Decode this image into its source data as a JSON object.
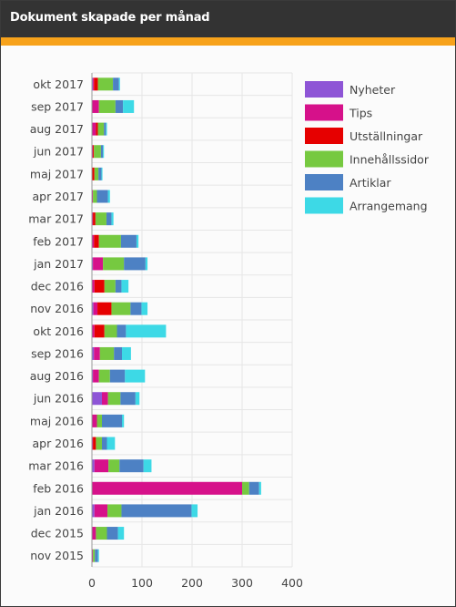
{
  "widget": {
    "title": "Dokument skapade per månad"
  },
  "chart_data": {
    "type": "bar",
    "orientation": "horizontal",
    "stacked": true,
    "title": "",
    "xlabel": "",
    "ylabel": "",
    "xlim": [
      0,
      400
    ],
    "x_ticks": [
      "0",
      "100",
      "200",
      "300",
      "400"
    ],
    "grid": true,
    "legend_position": "right",
    "categories": [
      "okt 2017",
      "sep 2017",
      "aug 2017",
      "jun 2017",
      "maj 2017",
      "apr 2017",
      "mar 2017",
      "feb 2017",
      "jan 2017",
      "dec 2016",
      "nov 2016",
      "okt 2016",
      "sep 2016",
      "aug 2016",
      "jun 2016",
      "maj 2016",
      "apr 2016",
      "mar 2016",
      "feb 2016",
      "jan 2016",
      "dec 2015",
      "nov 2015"
    ],
    "series": [
      {
        "name": "Nyheter",
        "color": "#8e55d6",
        "values": [
          2,
          0,
          0,
          0,
          0,
          0,
          0,
          0,
          2,
          0,
          3,
          0,
          4,
          2,
          20,
          0,
          0,
          5,
          0,
          5,
          0,
          0
        ]
      },
      {
        "name": "Tips",
        "color": "#d6118a",
        "values": [
          2,
          14,
          8,
          2,
          0,
          2,
          2,
          4,
          20,
          5,
          8,
          5,
          12,
          12,
          12,
          10,
          2,
          28,
          300,
          26,
          8,
          2
        ]
      },
      {
        "name": "Utställningar",
        "color": "#e60000",
        "values": [
          8,
          0,
          4,
          2,
          5,
          0,
          5,
          10,
          0,
          20,
          28,
          20,
          0,
          0,
          0,
          0,
          6,
          0,
          0,
          0,
          0,
          0
        ]
      },
      {
        "name": "Innehållssidor",
        "color": "#76c940",
        "values": [
          30,
          33,
          12,
          14,
          8,
          8,
          22,
          44,
          42,
          22,
          38,
          25,
          28,
          22,
          25,
          10,
          12,
          22,
          14,
          28,
          22,
          4
        ]
      },
      {
        "name": "Artiklar",
        "color": "#4d81c4",
        "values": [
          12,
          15,
          4,
          4,
          6,
          22,
          10,
          31,
          43,
          12,
          22,
          18,
          16,
          30,
          30,
          40,
          10,
          48,
          20,
          140,
          22,
          6
        ]
      },
      {
        "name": "Arrangemang",
        "color": "#3dd9e6",
        "values": [
          2,
          22,
          2,
          2,
          2,
          4,
          4,
          4,
          4,
          14,
          12,
          80,
          18,
          40,
          8,
          4,
          16,
          16,
          4,
          12,
          12,
          2
        ]
      }
    ]
  }
}
